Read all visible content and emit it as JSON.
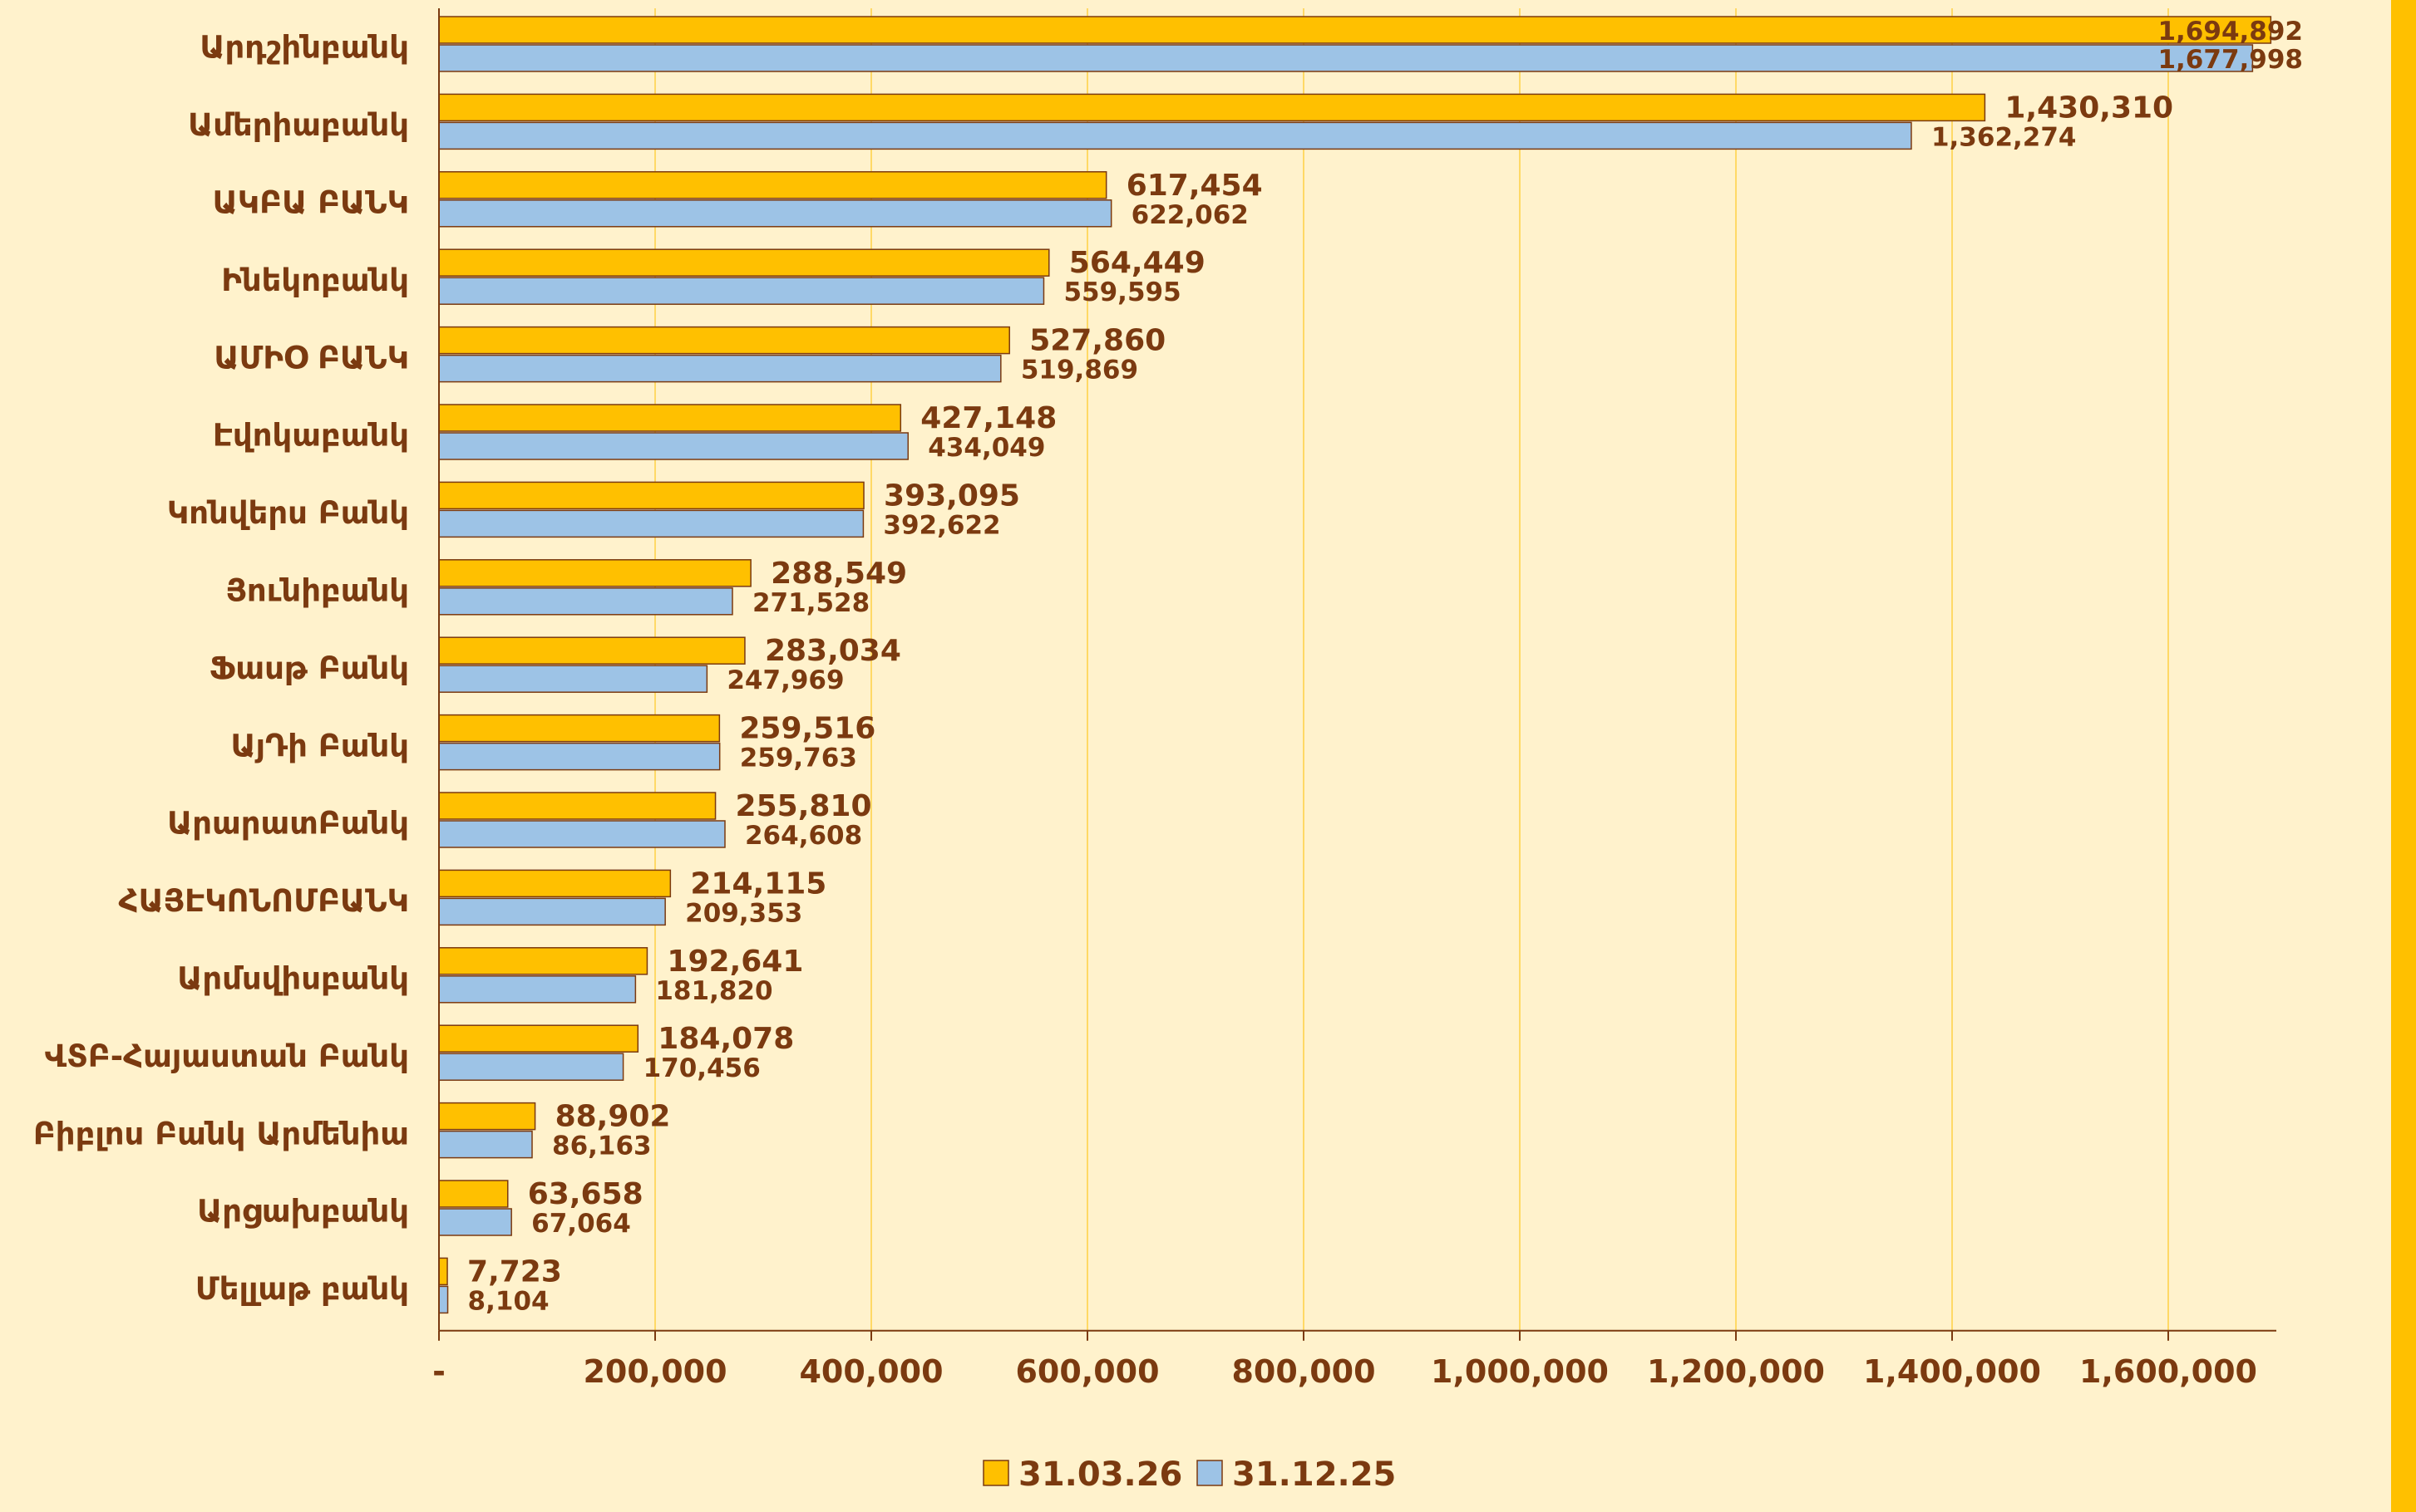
{
  "chart_data": {
    "type": "bar",
    "orientation": "horizontal",
    "categories": [
      "Արդշինբանկ",
      "Ամերիաբանկ",
      "ԱԿԲԱ ԲԱՆԿ",
      "Ինեկոբանկ",
      "ԱՄԻՕ ԲԱՆԿ",
      "Էվոկաբանկ",
      "Կոնվերս Բանկ",
      "Յունիբանկ",
      "Ֆասթ Բանկ",
      "ԱյԴի Բանկ",
      "ԱրարատԲանկ",
      "ՀԱՅԷԿՈՆՈՄԲԱՆԿ",
      "Արմսվիսբանկ",
      "ՎՏԲ-Հայաստան Բանկ",
      "Բիբլոս Բանկ Արմենիա",
      "Արցախբանկ",
      "Մելլաթ բանկ"
    ],
    "series": [
      {
        "name": "31.03.26",
        "color": "#FFC000",
        "values": [
          1694892,
          1430310,
          617454,
          564449,
          527860,
          427148,
          393095,
          288549,
          283034,
          259516,
          255810,
          214115,
          192641,
          184078,
          88902,
          63658,
          7723
        ],
        "labels": [
          "1,694,892",
          "1,430,310",
          "617,454",
          "564,449",
          "527,860",
          "427,148",
          "393,095",
          "288,549",
          "283,034",
          "259,516",
          "255,810",
          "214,115",
          "192,641",
          "184,078",
          "88,902",
          "63,658",
          "7,723"
        ]
      },
      {
        "name": "31.12.25",
        "color": "#9DC3E6",
        "values": [
          1677998,
          1362274,
          622062,
          559595,
          519869,
          434049,
          392622,
          271528,
          247969,
          259763,
          264608,
          209353,
          181820,
          170456,
          86163,
          67064,
          8104
        ],
        "labels": [
          "1,677,998",
          "1,362,274",
          "622,062",
          "559,595",
          "519,869",
          "434,049",
          "392,622",
          "271,528",
          "247,969",
          "259,763",
          "264,608",
          "209,353",
          "181,820",
          "170,456",
          "86,163",
          "67,064",
          "8,104"
        ]
      }
    ],
    "x_ticks": [
      0,
      200000,
      400000,
      600000,
      800000,
      1000000,
      1200000,
      1400000,
      1600000
    ],
    "x_tick_labels": [
      "-",
      "200,000",
      "400,000",
      "600,000",
      "800,000",
      "1,000,000",
      "1,200,000",
      "1,400,000",
      "1,600,000"
    ],
    "xlim": [
      0,
      1700000
    ],
    "grid": true,
    "legend_position": "bottom",
    "title": "",
    "xlabel": "",
    "ylabel": ""
  },
  "colors": {
    "background": "#FFF2CC",
    "gridline": "#FFD966",
    "text": "#7B3A10",
    "bar_border": "#7B3A10",
    "right_stripe": "#FFC000"
  }
}
